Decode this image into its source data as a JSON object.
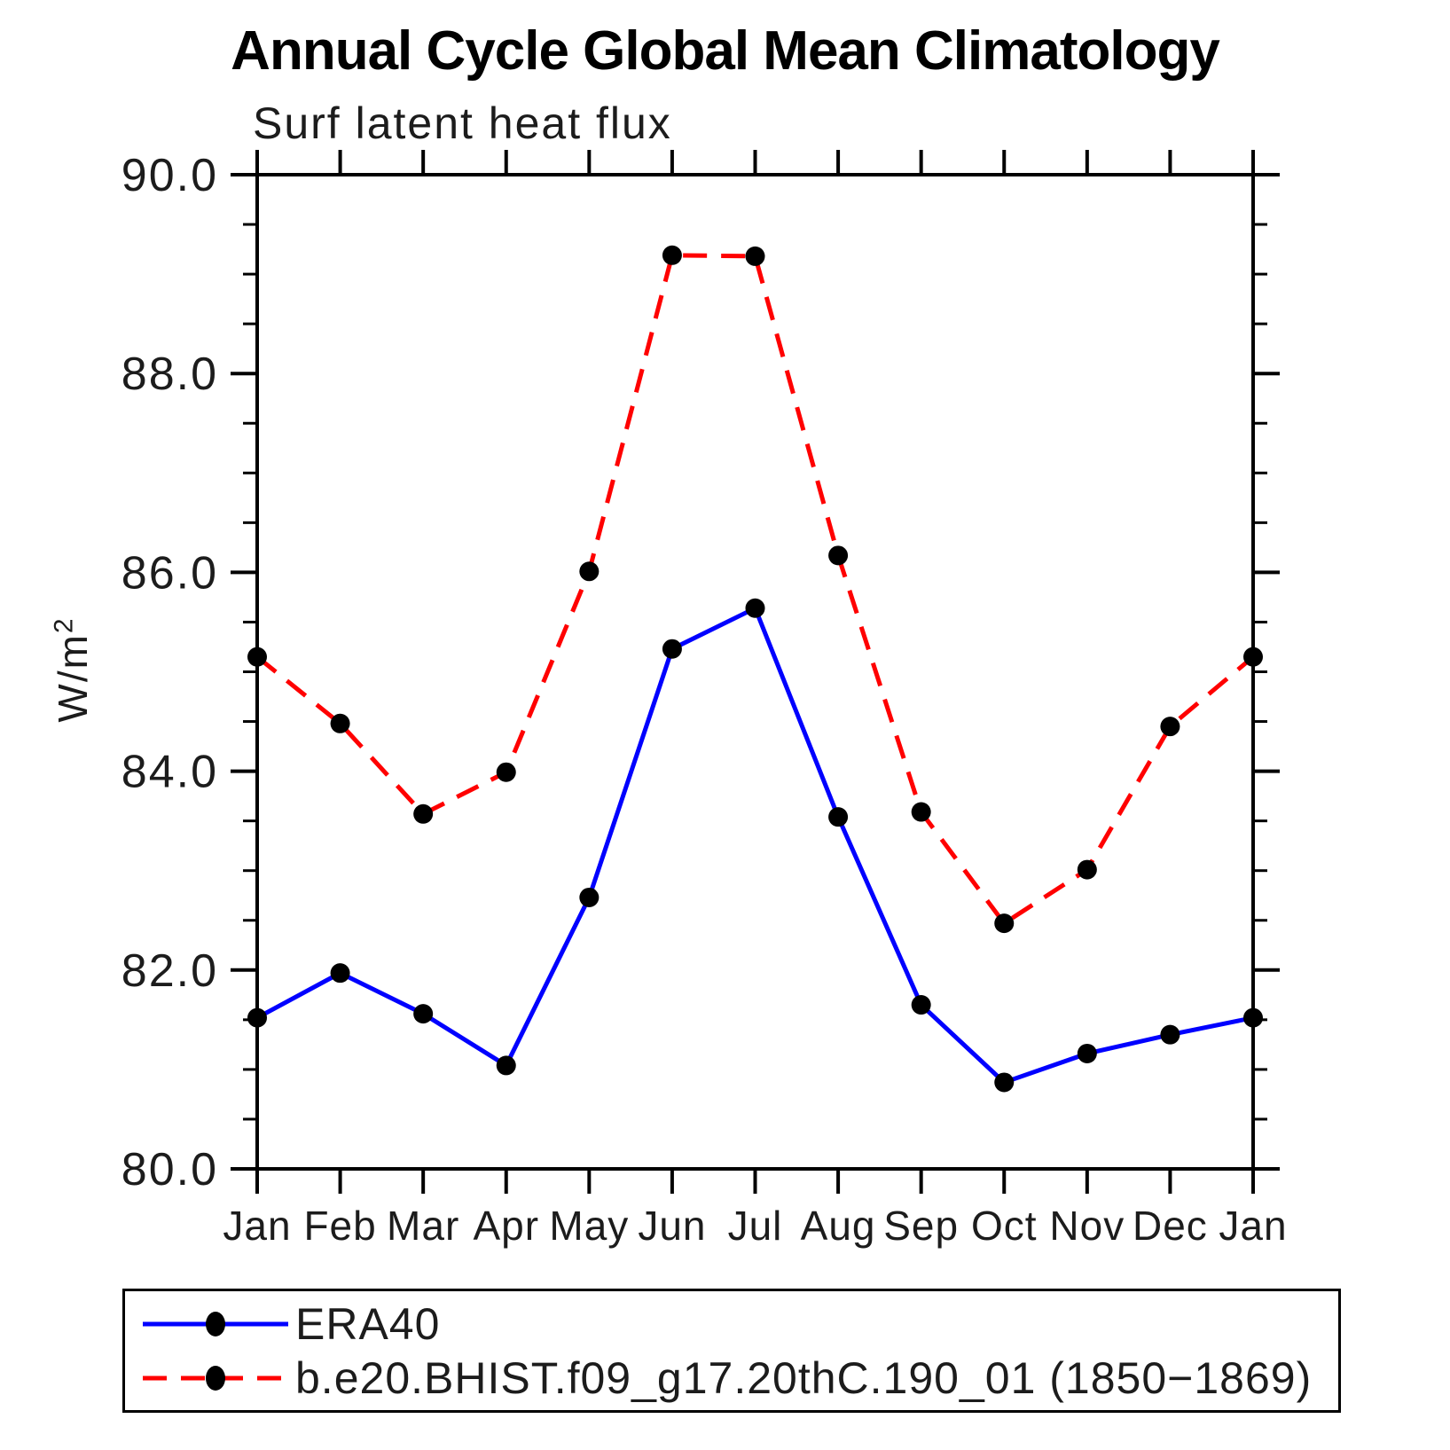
{
  "page": {
    "title": "Annual Cycle Global Mean Climatology",
    "subtitle": "Surf latent heat flux"
  },
  "chart_data": {
    "type": "line",
    "title": "Annual Cycle Global Mean Climatology",
    "subtitle": "Surf latent heat flux",
    "ylabel_base": "W/m",
    "ylabel_superscript": "2",
    "xlabel": "",
    "x_categories": [
      "Jan",
      "Feb",
      "Mar",
      "Apr",
      "May",
      "Jun",
      "Jul",
      "Aug",
      "Sep",
      "Oct",
      "Nov",
      "Dec",
      "Jan"
    ],
    "ylim": [
      80.0,
      90.0
    ],
    "y_major_ticks": [
      80.0,
      82.0,
      84.0,
      86.0,
      88.0,
      90.0
    ],
    "y_tick_labels": [
      "80.0",
      "82.0",
      "84.0",
      "86.0",
      "88.0",
      "90.0"
    ],
    "y_minor_step": 0.5,
    "grid": "off",
    "legend_position": "bottom",
    "axis_color": "#000000",
    "marker_color": "#000000",
    "series": [
      {
        "name": "ERA40",
        "label": "ERA40",
        "color": "#0000ff",
        "line_style": "solid",
        "marker": "filled-circle",
        "values": [
          81.52,
          81.97,
          81.56,
          81.04,
          82.73,
          85.23,
          85.64,
          83.54,
          81.65,
          80.87,
          81.16,
          81.35,
          81.52
        ]
      },
      {
        "name": "b.e20.BHIST.f09_g17.20thC.190_01 (1850−1869)",
        "label": "b.e20.BHIST.f09_g17.20thC.190_01 (1850−1869)",
        "color": "#ff0000",
        "line_style": "dashed",
        "marker": "filled-circle",
        "values": [
          85.15,
          84.48,
          83.57,
          83.99,
          86.01,
          89.19,
          89.18,
          86.17,
          83.59,
          82.47,
          83.01,
          84.45,
          85.15
        ]
      }
    ]
  }
}
